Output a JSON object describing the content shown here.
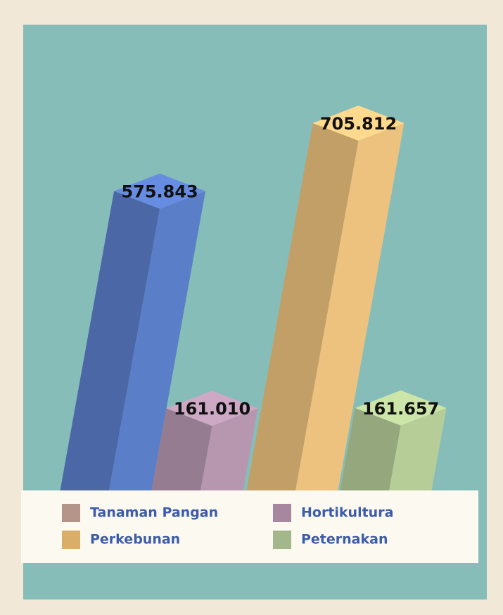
{
  "chart_data": {
    "type": "bar3d",
    "categories": [
      "Tanaman Pangan",
      "Hortikultura",
      "Perkebunan",
      "Peternakan"
    ],
    "values": [
      575843,
      161010,
      705812,
      161657
    ],
    "value_labels": [
      "575.843",
      "161.010",
      "705.812",
      "161.657"
    ],
    "colors": [
      "#5b7ec9",
      "#b797b0",
      "#ecc27e",
      "#b6cd98"
    ],
    "legend_colors": [
      "#b5948a",
      "#a6879f",
      "#d9ae69",
      "#a3b78a"
    ],
    "legend": "bottom"
  }
}
